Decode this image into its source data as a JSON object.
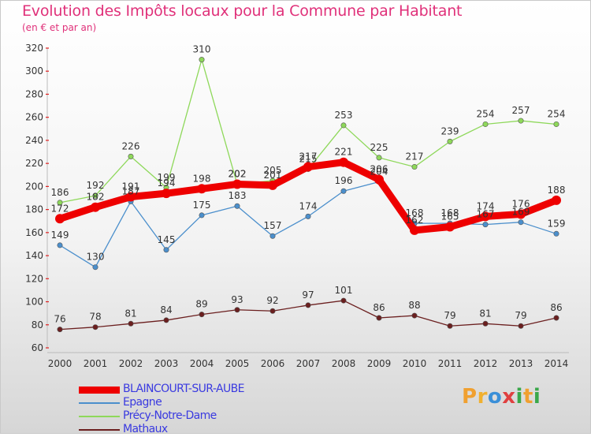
{
  "title": "Evolution des Impôts locaux pour la Commune par Habitant",
  "subtitle": "(en € et par an)",
  "logo": "Proxiti",
  "chart_data": {
    "type": "line",
    "title": "Evolution des Impôts locaux pour la Commune par Habitant",
    "subtitle": "(en € et par an)",
    "xlabel": "",
    "ylabel": "",
    "ylim": [
      60,
      320
    ],
    "ytick_step": 20,
    "grid": false,
    "legend_position": "bottom-left",
    "x": [
      "2000",
      "2001",
      "2002",
      "2003",
      "2004",
      "2005",
      "2006",
      "2007",
      "2008",
      "2009",
      "2010",
      "2011",
      "2012",
      "2013",
      "2014"
    ],
    "series": [
      {
        "name": "Mathaux",
        "color": "#6b1f1f",
        "values": [
          76,
          78,
          81,
          84,
          89,
          93,
          92,
          97,
          101,
          86,
          88,
          79,
          81,
          79,
          86
        ]
      },
      {
        "name": "Précy-Notre-Dame",
        "color": "#8ed85a",
        "values": [
          186,
          192,
          226,
          199,
          310,
          202,
          205,
          215,
          253,
          225,
          217,
          239,
          254,
          257,
          254
        ]
      },
      {
        "name": "Epagne",
        "color": "#4b8fcc",
        "values": [
          149,
          130,
          187,
          145,
          175,
          183,
          157,
          174,
          196,
          204,
          168,
          168,
          167,
          169,
          159
        ]
      },
      {
        "name": "BLAINCOURT-SUR-AUBE",
        "color": "#ee0000",
        "values": [
          172,
          182,
          191,
          194,
          198,
          202,
          201,
          217,
          221,
          206,
          162,
          165,
          174,
          176,
          188
        ]
      }
    ]
  }
}
